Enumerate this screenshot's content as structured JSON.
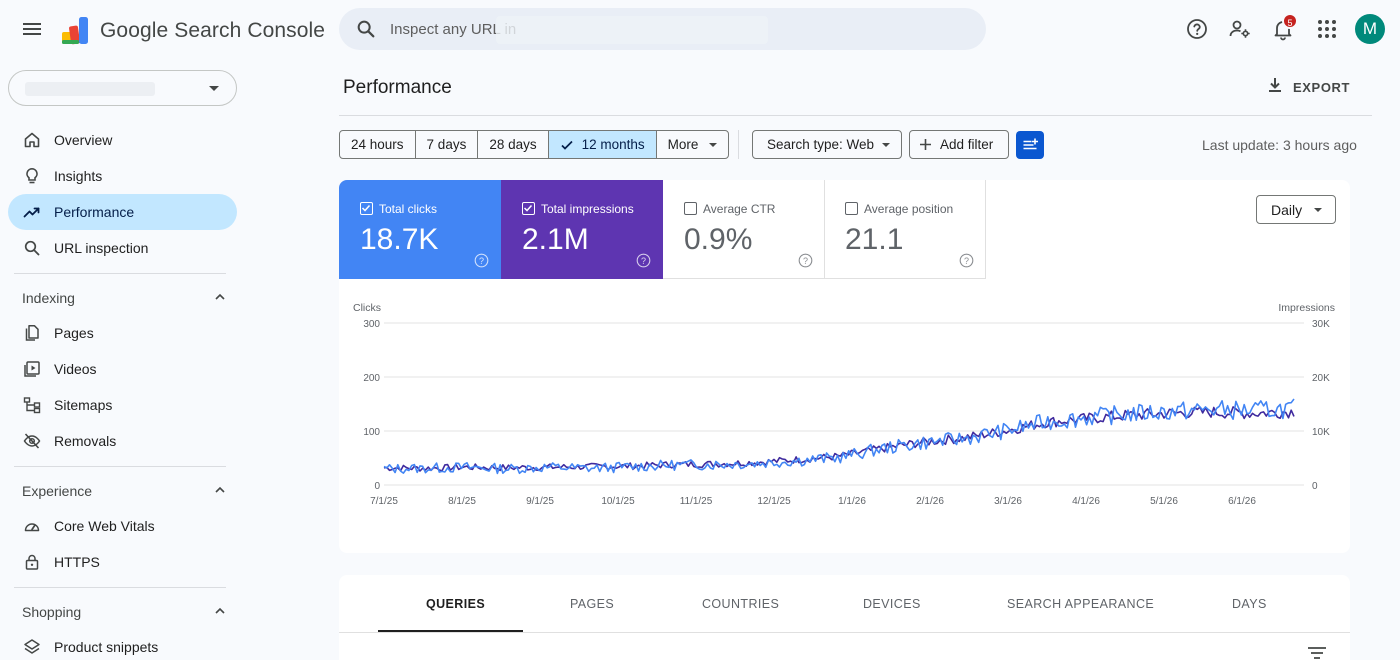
{
  "header": {
    "app_title": "Google Search Console",
    "search_placeholder": "Inspect any URL in",
    "notifications_count": "5",
    "avatar_letter": "M"
  },
  "sidebar": {
    "top_items": [
      {
        "label": "Overview",
        "icon": "home-icon"
      },
      {
        "label": "Insights",
        "icon": "lightbulb-icon"
      },
      {
        "label": "Performance",
        "icon": "trending-up-icon",
        "active": true
      },
      {
        "label": "URL inspection",
        "icon": "search-icon"
      }
    ],
    "sections": [
      {
        "title": "Indexing",
        "items": [
          {
            "label": "Pages",
            "icon": "pages-icon"
          },
          {
            "label": "Videos",
            "icon": "video-icon"
          },
          {
            "label": "Sitemaps",
            "icon": "sitemap-icon"
          },
          {
            "label": "Removals",
            "icon": "eye-off-icon"
          }
        ]
      },
      {
        "title": "Experience",
        "items": [
          {
            "label": "Core Web Vitals",
            "icon": "speed-icon"
          },
          {
            "label": "HTTPS",
            "icon": "lock-icon"
          }
        ]
      },
      {
        "title": "Shopping",
        "items": [
          {
            "label": "Product snippets",
            "icon": "layers-icon"
          }
        ]
      }
    ]
  },
  "main": {
    "page_title": "Performance",
    "export_label": "EXPORT",
    "date_ranges": [
      "24 hours",
      "7 days",
      "28 days",
      "12 months",
      "More"
    ],
    "active_range": "12 months",
    "search_type": "Search type: Web",
    "add_filter": "Add filter",
    "last_update": "Last update: 3 hours ago",
    "granularity": "Daily",
    "metrics": [
      {
        "label": "Total clicks",
        "value": "18.7K",
        "checked": true,
        "color": "#4285f4"
      },
      {
        "label": "Total impressions",
        "value": "2.1M",
        "checked": true,
        "color": "#5e35b1"
      },
      {
        "label": "Average CTR",
        "value": "0.9%",
        "checked": false
      },
      {
        "label": "Average position",
        "value": "21.1",
        "checked": false
      }
    ],
    "tabs": [
      "QUERIES",
      "PAGES",
      "COUNTRIES",
      "DEVICES",
      "SEARCH APPEARANCE",
      "DAYS"
    ],
    "active_tab": "QUERIES"
  },
  "chart_data": {
    "type": "line",
    "ylabel": "Clicks",
    "y2label": "Impressions",
    "ylim": [
      0,
      300
    ],
    "y2lim": [
      0,
      30000
    ],
    "y_ticks": [
      "0",
      "100",
      "200",
      "300"
    ],
    "y2_ticks": [
      "0",
      "10K",
      "20K",
      "30K"
    ],
    "x_ticks": [
      "7/1/25",
      "8/1/25",
      "9/1/25",
      "10/1/25",
      "11/1/25",
      "12/1/25",
      "1/1/26",
      "2/1/26",
      "3/1/26",
      "4/1/26",
      "5/1/26",
      "6/1/26"
    ],
    "grid": true,
    "series": [
      {
        "name": "Total clicks",
        "color": "#4285f4",
        "axis": "left",
        "values": [
          30,
          31,
          33,
          30,
          33,
          31,
          34,
          37,
          38,
          40,
          45,
          51,
          67,
          78,
          86,
          100,
          117,
          125,
          132,
          136,
          140,
          138,
          142
        ]
      },
      {
        "name": "Total impressions",
        "color": "#3f2a9e",
        "axis": "right",
        "values": [
          3200,
          3100,
          3300,
          3200,
          3300,
          3400,
          3500,
          3800,
          3900,
          4200,
          4700,
          5300,
          6700,
          7900,
          8700,
          10000,
          11600,
          12300,
          12900,
          13300,
          13500,
          13300,
          13600
        ]
      }
    ]
  }
}
